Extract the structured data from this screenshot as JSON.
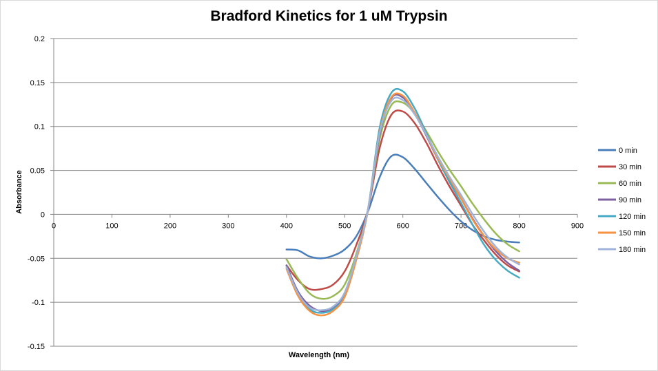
{
  "chart_data": {
    "type": "line",
    "title": "Bradford Kinetics for 1 uM Trypsin",
    "xlabel": "Wavelength (nm)",
    "ylabel": "Absorbance",
    "xlim": [
      0,
      900
    ],
    "ylim": [
      -0.15,
      0.2
    ],
    "xticks": [
      0,
      100,
      200,
      300,
      400,
      500,
      600,
      700,
      800,
      900
    ],
    "yticks": [
      0.2,
      0.15,
      0.1,
      0.05,
      0,
      -0.05,
      -0.1,
      -0.15
    ],
    "ytick_labels": [
      "0.2",
      "0.15",
      "0.1",
      "0.05",
      "0",
      "-0.05",
      "-0.1",
      "-0.15"
    ],
    "grid": "horizontal major gridlines",
    "legend_position": "right",
    "x": [
      400,
      420,
      440,
      460,
      480,
      500,
      520,
      540,
      560,
      580,
      600,
      620,
      640,
      660,
      680,
      700,
      720,
      740,
      760,
      780,
      800
    ],
    "series": [
      {
        "name": "0 min",
        "color": "#4a7ebb",
        "values": [
          -0.04,
          -0.041,
          -0.048,
          -0.05,
          -0.047,
          -0.04,
          -0.025,
          0.003,
          0.042,
          0.066,
          0.065,
          0.052,
          0.036,
          0.02,
          0.005,
          -0.008,
          -0.018,
          -0.025,
          -0.029,
          -0.031,
          -0.032
        ]
      },
      {
        "name": "30 min",
        "color": "#be4b48",
        "values": [
          -0.058,
          -0.075,
          -0.085,
          -0.085,
          -0.08,
          -0.065,
          -0.035,
          0.005,
          0.075,
          0.113,
          0.117,
          0.104,
          0.082,
          0.056,
          0.032,
          0.01,
          -0.012,
          -0.03,
          -0.046,
          -0.058,
          -0.065
        ]
      },
      {
        "name": "60 min",
        "color": "#98b954",
        "values": [
          -0.051,
          -0.073,
          -0.09,
          -0.096,
          -0.093,
          -0.08,
          -0.045,
          0.005,
          0.085,
          0.124,
          0.127,
          0.115,
          0.095,
          0.072,
          0.051,
          0.032,
          0.012,
          -0.006,
          -0.022,
          -0.034,
          -0.042
        ]
      },
      {
        "name": "90 min",
        "color": "#7d60a0",
        "values": [
          -0.058,
          -0.088,
          -0.104,
          -0.11,
          -0.107,
          -0.09,
          -0.05,
          0.005,
          0.09,
          0.132,
          0.133,
          0.115,
          0.09,
          0.063,
          0.04,
          0.018,
          -0.005,
          -0.025,
          -0.042,
          -0.055,
          -0.064
        ]
      },
      {
        "name": "120 min",
        "color": "#46aac4",
        "values": [
          -0.06,
          -0.09,
          -0.108,
          -0.112,
          -0.108,
          -0.093,
          -0.05,
          0.005,
          0.098,
          0.138,
          0.14,
          0.121,
          0.093,
          0.063,
          0.037,
          0.013,
          -0.012,
          -0.035,
          -0.052,
          -0.064,
          -0.072
        ]
      },
      {
        "name": "150 min",
        "color": "#f69240",
        "values": [
          -0.062,
          -0.093,
          -0.11,
          -0.115,
          -0.11,
          -0.094,
          -0.052,
          0.004,
          0.093,
          0.133,
          0.135,
          0.116,
          0.091,
          0.064,
          0.041,
          0.018,
          -0.006,
          -0.025,
          -0.04,
          -0.05,
          -0.055
        ]
      },
      {
        "name": "180 min",
        "color": "#9fb4d8",
        "values": [
          -0.06,
          -0.09,
          -0.106,
          -0.109,
          -0.105,
          -0.089,
          -0.048,
          0.005,
          0.092,
          0.129,
          0.13,
          0.114,
          0.091,
          0.066,
          0.043,
          0.022,
          0.0,
          -0.02,
          -0.037,
          -0.049,
          -0.057
        ]
      }
    ]
  }
}
